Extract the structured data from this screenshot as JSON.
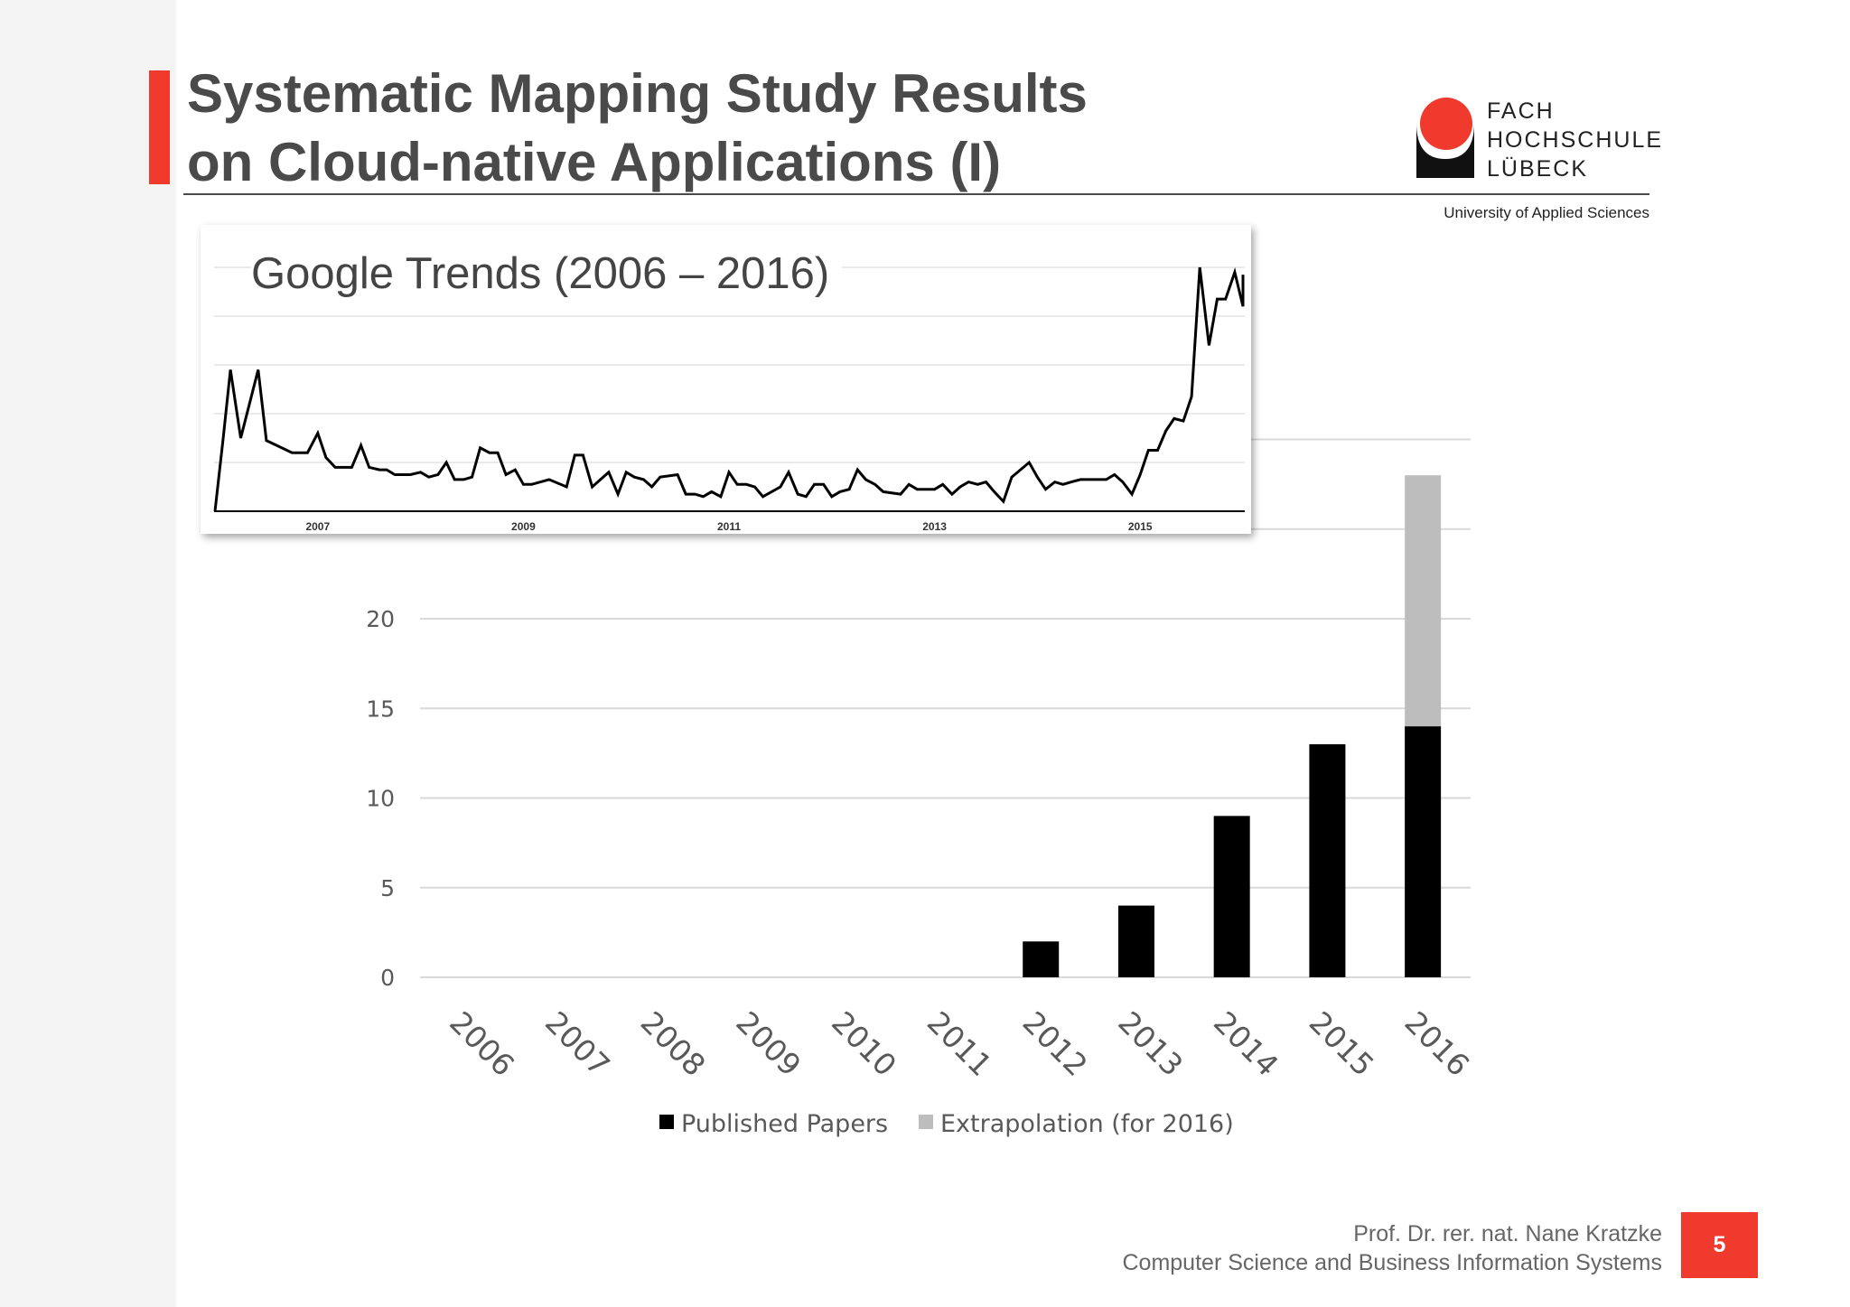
{
  "slide": {
    "title_line1": "Systematic Mapping Study Results",
    "title_line2": "on Cloud-native Applications (I)",
    "page_number": "5",
    "accent_color": "#f03a2e"
  },
  "logo": {
    "line1": "FACH",
    "line2": "HOCHSCHULE",
    "line3": "LÜBECK",
    "subtitle": "University of Applied Sciences"
  },
  "footer": {
    "author": "Prof. Dr. rer. nat. Nane Kratzke",
    "department": "Computer Science and Business Information Systems"
  },
  "chart_data": [
    {
      "type": "bar",
      "stacked": true,
      "categories": [
        "2006",
        "2007",
        "2008",
        "2009",
        "2010",
        "2011",
        "2012",
        "2013",
        "2014",
        "2015",
        "2016"
      ],
      "series": [
        {
          "name": "Published Papers",
          "color": "#000000",
          "values": [
            0,
            0,
            0,
            0,
            0,
            0,
            2,
            4,
            9,
            13,
            14
          ]
        },
        {
          "name": "Extrapolation (for 2016)",
          "color": "#bdbdbd",
          "values": [
            0,
            0,
            0,
            0,
            0,
            0,
            0,
            0,
            0,
            0,
            14
          ]
        }
      ],
      "y_ticks": [
        "0",
        "5",
        "10",
        "15",
        "20"
      ],
      "ylim": [
        0,
        30
      ],
      "grid": true,
      "legend": "bottom",
      "legend_labels": [
        "Published Papers",
        "Extrapolation (for 2016)"
      ]
    },
    {
      "type": "line",
      "title": "Google Trends (2006 – 2016)",
      "x_ticks": [
        "2007",
        "2009",
        "2011",
        "2013",
        "2015"
      ],
      "x_range": [
        2006.0,
        2016.0
      ],
      "ylim": [
        0,
        100
      ],
      "grid": true,
      "color": "#000000",
      "points": [
        [
          2006.0,
          0
        ],
        [
          2006.08,
          30
        ],
        [
          2006.15,
          58
        ],
        [
          2006.25,
          30
        ],
        [
          2006.42,
          58
        ],
        [
          2006.5,
          29
        ],
        [
          2006.6,
          27
        ],
        [
          2006.75,
          24
        ],
        [
          2006.9,
          24
        ],
        [
          2007.0,
          32
        ],
        [
          2007.08,
          22
        ],
        [
          2007.17,
          18
        ],
        [
          2007.33,
          18
        ],
        [
          2007.42,
          27
        ],
        [
          2007.5,
          18
        ],
        [
          2007.6,
          17
        ],
        [
          2007.67,
          17
        ],
        [
          2007.75,
          15
        ],
        [
          2007.9,
          15
        ],
        [
          2008.0,
          16
        ],
        [
          2008.08,
          14
        ],
        [
          2008.17,
          15
        ],
        [
          2008.25,
          20
        ],
        [
          2008.33,
          13
        ],
        [
          2008.42,
          13
        ],
        [
          2008.5,
          14
        ],
        [
          2008.58,
          26
        ],
        [
          2008.67,
          24
        ],
        [
          2008.75,
          24
        ],
        [
          2008.83,
          15
        ],
        [
          2008.92,
          17
        ],
        [
          2009.0,
          11
        ],
        [
          2009.08,
          11
        ],
        [
          2009.25,
          13
        ],
        [
          2009.42,
          10
        ],
        [
          2009.5,
          23
        ],
        [
          2009.58,
          23
        ],
        [
          2009.67,
          10
        ],
        [
          2009.83,
          16
        ],
        [
          2009.92,
          7
        ],
        [
          2010.0,
          16
        ],
        [
          2010.08,
          14
        ],
        [
          2010.17,
          13
        ],
        [
          2010.25,
          10
        ],
        [
          2010.33,
          14
        ],
        [
          2010.5,
          15
        ],
        [
          2010.58,
          7
        ],
        [
          2010.67,
          7
        ],
        [
          2010.75,
          6
        ],
        [
          2010.83,
          8
        ],
        [
          2010.92,
          6
        ],
        [
          2011.0,
          16
        ],
        [
          2011.08,
          11
        ],
        [
          2011.17,
          11
        ],
        [
          2011.25,
          10
        ],
        [
          2011.33,
          6
        ],
        [
          2011.5,
          10
        ],
        [
          2011.58,
          16
        ],
        [
          2011.67,
          7
        ],
        [
          2011.75,
          6
        ],
        [
          2011.83,
          11
        ],
        [
          2011.92,
          11
        ],
        [
          2012.0,
          6
        ],
        [
          2012.08,
          8
        ],
        [
          2012.17,
          9
        ],
        [
          2012.25,
          17
        ],
        [
          2012.33,
          13
        ],
        [
          2012.42,
          11
        ],
        [
          2012.5,
          8
        ],
        [
          2012.67,
          7
        ],
        [
          2012.75,
          11
        ],
        [
          2012.83,
          9
        ],
        [
          2012.92,
          9
        ],
        [
          2013.0,
          9
        ],
        [
          2013.08,
          11
        ],
        [
          2013.17,
          7
        ],
        [
          2013.25,
          10
        ],
        [
          2013.33,
          12
        ],
        [
          2013.42,
          11
        ],
        [
          2013.5,
          12
        ],
        [
          2013.58,
          8
        ],
        [
          2013.67,
          4
        ],
        [
          2013.75,
          14
        ],
        [
          2013.92,
          20
        ],
        [
          2014.0,
          14
        ],
        [
          2014.08,
          9
        ],
        [
          2014.17,
          12
        ],
        [
          2014.25,
          11
        ],
        [
          2014.33,
          12
        ],
        [
          2014.42,
          13
        ],
        [
          2014.67,
          13
        ],
        [
          2014.75,
          15
        ],
        [
          2014.83,
          12
        ],
        [
          2014.92,
          7
        ],
        [
          2015.0,
          15
        ],
        [
          2015.08,
          25
        ],
        [
          2015.17,
          25
        ],
        [
          2015.25,
          33
        ],
        [
          2015.33,
          38
        ],
        [
          2015.42,
          37
        ],
        [
          2015.5,
          47
        ],
        [
          2015.58,
          100
        ],
        [
          2015.67,
          68
        ],
        [
          2015.75,
          87
        ],
        [
          2015.83,
          87
        ],
        [
          2015.92,
          98
        ],
        [
          2016.0,
          84
        ],
        [
          2016.0,
          97
        ]
      ]
    }
  ]
}
